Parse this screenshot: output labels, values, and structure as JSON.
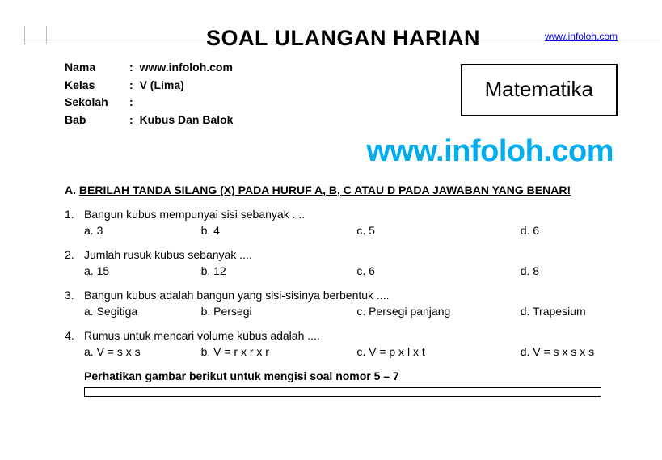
{
  "top_link": {
    "text": "www.infoloh.com",
    "href": "http://www.infoloh.com"
  },
  "title": "SOAL  ULANGAN  HARIAN",
  "info": {
    "nama_label": "Nama",
    "nama_value": "www.infoloh.com",
    "kelas_label": "Kelas",
    "kelas_value": "V (Lima)",
    "sekolah_label": "Sekolah",
    "sekolah_value": "",
    "bab_label": "Bab",
    "bab_value": "Kubus Dan Balok"
  },
  "subject": "Matematika",
  "watermark": "www.infoloh.com",
  "section_a_prefix": "A. ",
  "section_a_text": "BERILAH  TANDA SILANG (X) PADA HURUF A, B, C ATAU D PADA JAWABAN YANG  BENAR!",
  "questions": [
    {
      "num": "1.",
      "text": "Bangun kubus mempunyai sisi sebanyak ....",
      "choices": {
        "a": "a. 3",
        "b": "b. 4",
        "c": "c. 5",
        "d": "d. 6"
      }
    },
    {
      "num": "2.",
      "text": "Jumlah rusuk kubus sebanyak  ....",
      "choices": {
        "a": "a. 15",
        "b": "b. 12",
        "c": "c. 6",
        "d": "d. 8"
      }
    },
    {
      "num": "3.",
      "text": "Bangun  kubus adalah  bangun  yang  sisi-sisinya  berbentuk ....",
      "choices": {
        "a": "a. Segitiga",
        "b": "b. Persegi",
        "c": "c. Persegi panjang",
        "d": "d. Trapesium"
      }
    },
    {
      "num": "4.",
      "text": "Rumus untuk mencari volume kubus adalah  ....",
      "choices": {
        "a": "a. V = s x s",
        "b": "b. V = r x r x r",
        "c": "c. V = p x l x t",
        "d": "d. V = s x s x s"
      }
    }
  ],
  "instruction": "Perhatikan  gambar  berikut  untuk  mengisi  soal  nomor 5 – 7"
}
